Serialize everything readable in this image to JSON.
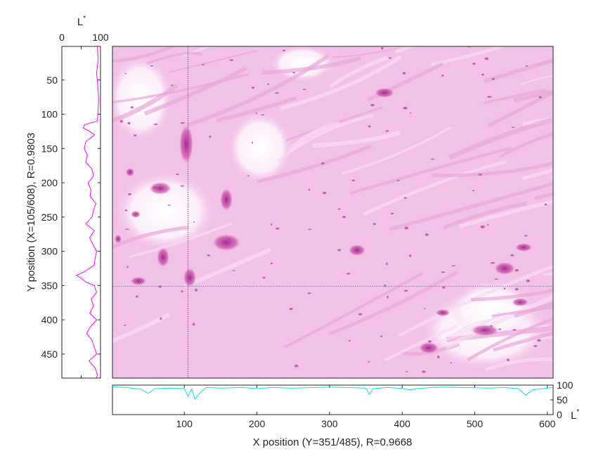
{
  "chart_data": [
    {
      "type": "line",
      "panel": "left-profile",
      "orientation": "vertical",
      "title": "L*",
      "xlabel": "",
      "ylabel": "Y position (X=105/608), R=0.9803",
      "xlim": [
        0,
        100
      ],
      "ylim": [
        485,
        1
      ],
      "xticks": [
        0,
        100
      ],
      "yticks": [
        50,
        100,
        150,
        200,
        250,
        300,
        350,
        400,
        450
      ],
      "y_reversed": true,
      "line_color": "#ff00ff",
      "y": [
        1,
        20,
        40,
        60,
        80,
        100,
        110,
        115,
        120,
        125,
        130,
        140,
        150,
        160,
        170,
        180,
        190,
        200,
        210,
        220,
        230,
        240,
        250,
        260,
        270,
        280,
        290,
        300,
        310,
        320,
        330,
        335,
        340,
        345,
        350,
        360,
        370,
        380,
        390,
        400,
        410,
        420,
        430,
        440,
        450,
        460,
        470,
        480,
        485
      ],
      "x": [
        92,
        94,
        90,
        93,
        95,
        93,
        92,
        60,
        55,
        72,
        85,
        62,
        58,
        66,
        62,
        78,
        82,
        68,
        75,
        73,
        88,
        82,
        78,
        62,
        84,
        72,
        80,
        90,
        86,
        84,
        58,
        38,
        52,
        62,
        84,
        90,
        76,
        82,
        72,
        90,
        74,
        64,
        78,
        84,
        90,
        70,
        86,
        92,
        90
      ]
    },
    {
      "type": "line",
      "panel": "bottom-profile",
      "orientation": "horizontal",
      "title": "",
      "xlabel": "X position (Y=351/485), R=0.9668",
      "ylabel": "L*",
      "xlim": [
        1,
        608
      ],
      "ylim": [
        0,
        100
      ],
      "xticks": [
        100,
        200,
        300,
        400,
        500,
        600
      ],
      "yticks": [
        0,
        50,
        100
      ],
      "line_color": "#00e5e5",
      "x": [
        1,
        20,
        40,
        50,
        60,
        80,
        100,
        105,
        110,
        115,
        120,
        130,
        150,
        180,
        200,
        220,
        250,
        300,
        350,
        355,
        360,
        380,
        400,
        410,
        420,
        440,
        460,
        480,
        500,
        520,
        540,
        560,
        570,
        580,
        600,
        608
      ],
      "y": [
        94,
        92,
        86,
        72,
        88,
        90,
        88,
        62,
        86,
        52,
        70,
        92,
        90,
        92,
        88,
        92,
        90,
        93,
        90,
        68,
        88,
        92,
        89,
        84,
        88,
        92,
        93,
        92,
        91,
        90,
        92,
        88,
        66,
        84,
        90,
        92
      ]
    }
  ],
  "image_panel": {
    "crosshair_color": "#ff00ff",
    "crosshair_h_color": "#00b0ff",
    "cursor_x": 105,
    "cursor_y": 351,
    "x_range": [
      1,
      608
    ],
    "y_range": [
      1,
      485
    ]
  }
}
